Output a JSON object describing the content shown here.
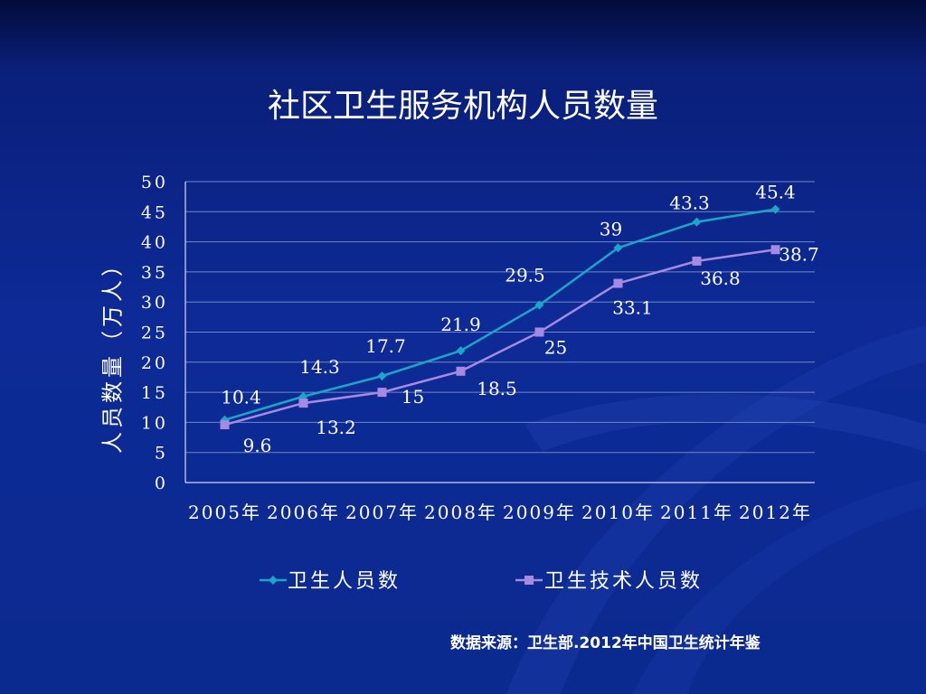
{
  "slide": {
    "title": "社区卫生服务机构人员数量",
    "source": "数据来源：卫生部.2012年中国卫生统计年鉴"
  },
  "colors": {
    "background": "#0b2a8f",
    "series1": "#1aa6c8",
    "series2": "#a58ae0",
    "grid": "#6f86c8"
  },
  "chart_data": {
    "type": "line",
    "title": "",
    "xlabel": "",
    "ylabel": "人员数量（万人）",
    "ylim": [
      0,
      50
    ],
    "yticks": [
      0,
      5,
      10,
      15,
      20,
      25,
      30,
      35,
      40,
      45,
      50
    ],
    "categories": [
      "2005年",
      "2006年",
      "2007年",
      "2008年",
      "2009年",
      "2010年",
      "2011年",
      "2012年"
    ],
    "grid": true,
    "legend": "bottom",
    "series": [
      {
        "name": "卫生人员数",
        "marker": "diamond",
        "values": [
          10.4,
          14.3,
          17.7,
          21.9,
          29.5,
          39,
          43.3,
          45.4
        ]
      },
      {
        "name": "卫生技术人员数",
        "marker": "square",
        "values": [
          9.6,
          13.2,
          15,
          18.5,
          25,
          33.1,
          36.8,
          38.7
        ]
      }
    ]
  }
}
